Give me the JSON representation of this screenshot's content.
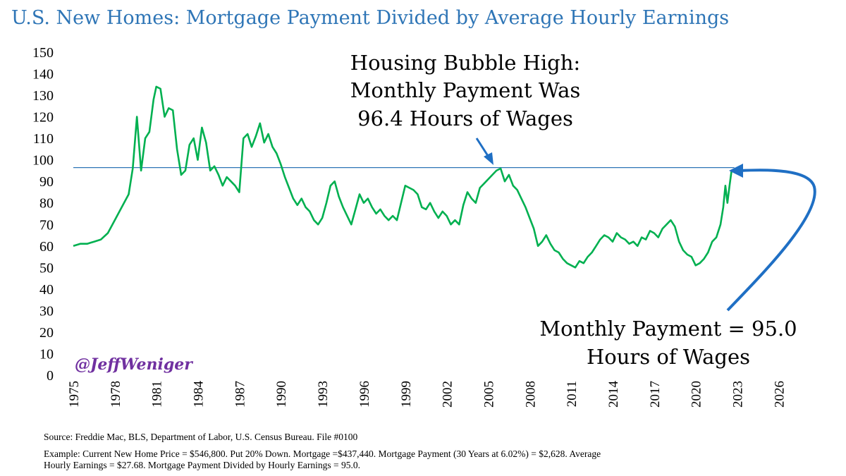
{
  "title": "U.S. New Homes: Mortgage Payment Divided by Average Hourly Earnings",
  "handle": "@JeffWeniger",
  "annotations": {
    "peak": [
      "Housing Bubble High:",
      "Monthly Payment Was",
      "96.4 Hours of Wages"
    ],
    "current": [
      "Monthly Payment = 95.0",
      "Hours of Wages"
    ]
  },
  "source_note": "Source: Freddie Mac, BLS, Department of Labor, U.S. Census Bureau. File #0100",
  "example_note": [
    "Example: Current New Home Price = $546,800. Put 20% Down. Mortgage =$437,440. Mortgage Payment (30 Years at 6.02%) = $2,628. Average",
    "Hourly Earnings = $27.68. Mortgage Payment Divided by Hourly Earnings = 95.0."
  ],
  "colors": {
    "title": "#2e75b6",
    "series": "#00b050",
    "reference_line": "#2e75b6",
    "arrows": "#1f6fc4",
    "handle": "#7030a0"
  },
  "chart_data": {
    "type": "line",
    "xlim": [
      1975,
      2027
    ],
    "ylim": [
      0,
      150
    ],
    "x_ticks": [
      "1975",
      "1978",
      "1981",
      "1984",
      "1987",
      "1990",
      "1993",
      "1996",
      "1999",
      "2002",
      "2005",
      "2008",
      "2011",
      "2014",
      "2017",
      "2020",
      "2023",
      "2026"
    ],
    "y_ticks": [
      "0",
      "10",
      "20",
      "30",
      "40",
      "50",
      "60",
      "70",
      "80",
      "90",
      "100",
      "110",
      "120",
      "130",
      "140",
      "150"
    ],
    "reference_line": 96.4,
    "grid": false,
    "series": [
      {
        "points": [
          [
            1975.0,
            60
          ],
          [
            1975.5,
            61
          ],
          [
            1976.0,
            61
          ],
          [
            1976.5,
            62
          ],
          [
            1977.0,
            63
          ],
          [
            1977.5,
            66
          ],
          [
            1978.0,
            72
          ],
          [
            1978.5,
            78
          ],
          [
            1979.0,
            84
          ],
          [
            1979.3,
            96
          ],
          [
            1979.6,
            120
          ],
          [
            1979.9,
            95
          ],
          [
            1980.2,
            110
          ],
          [
            1980.5,
            113
          ],
          [
            1980.8,
            128
          ],
          [
            1981.0,
            134
          ],
          [
            1981.3,
            133
          ],
          [
            1981.6,
            120
          ],
          [
            1981.9,
            124
          ],
          [
            1982.2,
            123
          ],
          [
            1982.5,
            105
          ],
          [
            1982.8,
            93
          ],
          [
            1983.1,
            95
          ],
          [
            1983.4,
            107
          ],
          [
            1983.7,
            110
          ],
          [
            1984.0,
            100
          ],
          [
            1984.3,
            115
          ],
          [
            1984.6,
            108
          ],
          [
            1984.9,
            95
          ],
          [
            1985.2,
            97
          ],
          [
            1985.5,
            93
          ],
          [
            1985.8,
            88
          ],
          [
            1986.1,
            92
          ],
          [
            1986.4,
            90
          ],
          [
            1986.7,
            88
          ],
          [
            1987.0,
            85
          ],
          [
            1987.3,
            110
          ],
          [
            1987.6,
            112
          ],
          [
            1987.9,
            106
          ],
          [
            1988.2,
            111
          ],
          [
            1988.5,
            117
          ],
          [
            1988.8,
            108
          ],
          [
            1989.1,
            112
          ],
          [
            1989.4,
            106
          ],
          [
            1989.7,
            103
          ],
          [
            1990.0,
            98
          ],
          [
            1990.3,
            92
          ],
          [
            1990.6,
            87
          ],
          [
            1990.9,
            82
          ],
          [
            1991.2,
            79
          ],
          [
            1991.5,
            82
          ],
          [
            1991.8,
            78
          ],
          [
            1992.1,
            76
          ],
          [
            1992.4,
            72
          ],
          [
            1992.7,
            70
          ],
          [
            1993.0,
            73
          ],
          [
            1993.3,
            80
          ],
          [
            1993.6,
            88
          ],
          [
            1993.9,
            90
          ],
          [
            1994.2,
            83
          ],
          [
            1994.5,
            78
          ],
          [
            1994.8,
            74
          ],
          [
            1995.1,
            70
          ],
          [
            1995.4,
            77
          ],
          [
            1995.7,
            84
          ],
          [
            1996.0,
            80
          ],
          [
            1996.3,
            82
          ],
          [
            1996.6,
            78
          ],
          [
            1996.9,
            75
          ],
          [
            1997.2,
            77
          ],
          [
            1997.5,
            74
          ],
          [
            1997.8,
            72
          ],
          [
            1998.1,
            74
          ],
          [
            1998.4,
            72
          ],
          [
            1998.7,
            80
          ],
          [
            1999.0,
            88
          ],
          [
            1999.3,
            87
          ],
          [
            1999.6,
            86
          ],
          [
            1999.9,
            84
          ],
          [
            2000.2,
            78
          ],
          [
            2000.5,
            77
          ],
          [
            2000.8,
            80
          ],
          [
            2001.1,
            76
          ],
          [
            2001.4,
            73
          ],
          [
            2001.7,
            76
          ],
          [
            2002.0,
            74
          ],
          [
            2002.3,
            70
          ],
          [
            2002.6,
            72
          ],
          [
            2002.9,
            70
          ],
          [
            2003.2,
            79
          ],
          [
            2003.5,
            85
          ],
          [
            2003.8,
            82
          ],
          [
            2004.1,
            80
          ],
          [
            2004.4,
            87
          ],
          [
            2004.7,
            89
          ],
          [
            2005.0,
            91
          ],
          [
            2005.3,
            93
          ],
          [
            2005.6,
            95
          ],
          [
            2005.9,
            96
          ],
          [
            2006.2,
            90
          ],
          [
            2006.5,
            93
          ],
          [
            2006.8,
            88
          ],
          [
            2007.1,
            86
          ],
          [
            2007.4,
            82
          ],
          [
            2007.7,
            78
          ],
          [
            2008.0,
            73
          ],
          [
            2008.3,
            68
          ],
          [
            2008.6,
            60
          ],
          [
            2008.9,
            62
          ],
          [
            2009.2,
            65
          ],
          [
            2009.5,
            61
          ],
          [
            2009.8,
            58
          ],
          [
            2010.1,
            57
          ],
          [
            2010.4,
            54
          ],
          [
            2010.7,
            52
          ],
          [
            2011.0,
            51
          ],
          [
            2011.3,
            50
          ],
          [
            2011.6,
            53
          ],
          [
            2011.9,
            52
          ],
          [
            2012.2,
            55
          ],
          [
            2012.5,
            57
          ],
          [
            2012.8,
            60
          ],
          [
            2013.1,
            63
          ],
          [
            2013.4,
            65
          ],
          [
            2013.7,
            64
          ],
          [
            2014.0,
            62
          ],
          [
            2014.3,
            66
          ],
          [
            2014.6,
            64
          ],
          [
            2014.9,
            63
          ],
          [
            2015.2,
            61
          ],
          [
            2015.5,
            62
          ],
          [
            2015.8,
            60
          ],
          [
            2016.1,
            64
          ],
          [
            2016.4,
            63
          ],
          [
            2016.7,
            67
          ],
          [
            2017.0,
            66
          ],
          [
            2017.3,
            64
          ],
          [
            2017.6,
            68
          ],
          [
            2017.9,
            70
          ],
          [
            2018.2,
            72
          ],
          [
            2018.5,
            69
          ],
          [
            2018.8,
            62
          ],
          [
            2019.1,
            58
          ],
          [
            2019.4,
            56
          ],
          [
            2019.7,
            55
          ],
          [
            2020.0,
            51
          ],
          [
            2020.3,
            52
          ],
          [
            2020.6,
            54
          ],
          [
            2020.9,
            57
          ],
          [
            2021.2,
            62
          ],
          [
            2021.5,
            64
          ],
          [
            2021.8,
            70
          ],
          [
            2022.0,
            78
          ],
          [
            2022.15,
            88
          ],
          [
            2022.3,
            80
          ],
          [
            2022.45,
            88
          ],
          [
            2022.6,
            95
          ]
        ]
      }
    ]
  }
}
